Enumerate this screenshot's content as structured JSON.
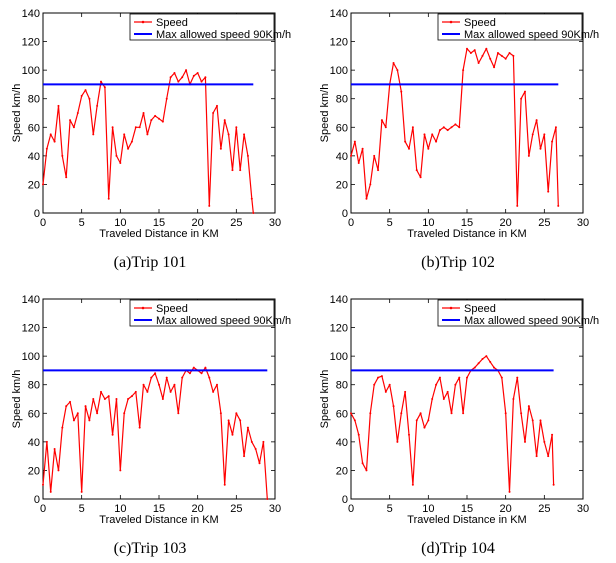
{
  "figure": {
    "charts": [
      {
        "caption": "(a)Trip 101",
        "variant": 0
      },
      {
        "caption": "(b)Trip 102",
        "variant": 1
      },
      {
        "caption": "(c)Trip 103",
        "variant": 2
      },
      {
        "caption": "(d)Trip 104",
        "variant": 3
      }
    ]
  },
  "chart_data": [
    {
      "type": "line",
      "title": "(a)Trip 101",
      "xlabel": "Traveled Distance in KM",
      "ylabel": "Speed km/h",
      "xlim": [
        0,
        30
      ],
      "ylim": [
        0,
        140
      ],
      "xticks": [
        0,
        5,
        10,
        15,
        20,
        25,
        30
      ],
      "yticks": [
        0,
        20,
        40,
        60,
        80,
        100,
        120,
        140
      ],
      "legend_position": "top-right",
      "grid": false,
      "series": [
        {
          "name": "Speed",
          "color": "#ff0000",
          "x": [
            0,
            0.5,
            1,
            1.5,
            2,
            2.5,
            3,
            3.5,
            4,
            4.5,
            5,
            5.5,
            6,
            6.5,
            7,
            7.5,
            8,
            8.5,
            9,
            9.5,
            10,
            10.5,
            11,
            11.5,
            12,
            12.5,
            13,
            13.5,
            14,
            14.5,
            15,
            15.5,
            16,
            16.5,
            17,
            17.5,
            18,
            18.5,
            19,
            19.5,
            20,
            20.5,
            21,
            21.5,
            22,
            22.5,
            23,
            23.5,
            24,
            24.5,
            25,
            25.5,
            26,
            26.5,
            27,
            27.2
          ],
          "y": [
            20,
            45,
            55,
            50,
            75,
            40,
            25,
            65,
            60,
            70,
            82,
            86,
            80,
            55,
            75,
            92,
            88,
            10,
            60,
            40,
            35,
            55,
            45,
            50,
            60,
            60,
            70,
            55,
            65,
            68,
            66,
            64,
            80,
            95,
            98,
            92,
            95,
            100,
            90,
            96,
            98,
            92,
            95,
            5,
            70,
            75,
            45,
            65,
            55,
            30,
            60,
            30,
            55,
            40,
            10,
            0
          ]
        },
        {
          "name": "Max allowed speed 90Km/h",
          "color": "#0000ff",
          "x": [
            0,
            27.2
          ],
          "y": [
            90,
            90
          ]
        }
      ]
    },
    {
      "type": "line",
      "title": "(b)Trip 102",
      "xlabel": "Traveled Distance in KM",
      "ylabel": "Speed km/h",
      "xlim": [
        0,
        30
      ],
      "ylim": [
        0,
        140
      ],
      "xticks": [
        0,
        5,
        10,
        15,
        20,
        25,
        30
      ],
      "yticks": [
        0,
        20,
        40,
        60,
        80,
        100,
        120,
        140
      ],
      "legend_position": "top-right",
      "grid": false,
      "series": [
        {
          "name": "Speed",
          "color": "#ff0000",
          "x": [
            0,
            0.5,
            1,
            1.5,
            2,
            2.5,
            3,
            3.5,
            4,
            4.5,
            5,
            5.5,
            6,
            6.5,
            7,
            7.5,
            8,
            8.5,
            9,
            9.5,
            10,
            10.5,
            11,
            11.5,
            12,
            12.5,
            13,
            13.5,
            14,
            14.5,
            15,
            15.5,
            16,
            16.5,
            17,
            17.5,
            18,
            18.5,
            19,
            19.5,
            20,
            20.5,
            21,
            21.5,
            22,
            22.5,
            23,
            23.5,
            24,
            24.5,
            25,
            25.5,
            26,
            26.5,
            26.8
          ],
          "y": [
            40,
            50,
            35,
            45,
            10,
            20,
            40,
            30,
            65,
            60,
            90,
            105,
            100,
            85,
            50,
            45,
            60,
            30,
            25,
            55,
            45,
            55,
            50,
            58,
            60,
            58,
            60,
            62,
            60,
            100,
            115,
            112,
            114,
            105,
            110,
            115,
            108,
            102,
            112,
            110,
            108,
            112,
            110,
            5,
            80,
            85,
            40,
            55,
            65,
            45,
            55,
            15,
            50,
            60,
            5
          ]
        },
        {
          "name": "Max allowed speed 90Km/h",
          "color": "#0000ff",
          "x": [
            0,
            26.8
          ],
          "y": [
            90,
            90
          ]
        }
      ]
    },
    {
      "type": "line",
      "title": "(c)Trip 103",
      "xlabel": "Traveled Distance in KM",
      "ylabel": "Speed km/h",
      "xlim": [
        0,
        30
      ],
      "ylim": [
        0,
        140
      ],
      "xticks": [
        0,
        5,
        10,
        15,
        20,
        25,
        30
      ],
      "yticks": [
        0,
        20,
        40,
        60,
        80,
        100,
        120,
        140
      ],
      "legend_position": "top-right",
      "grid": false,
      "series": [
        {
          "name": "Speed",
          "color": "#ff0000",
          "x": [
            0,
            0.5,
            1,
            1.5,
            2,
            2.5,
            3,
            3.5,
            4,
            4.5,
            5,
            5.5,
            6,
            6.5,
            7,
            7.5,
            8,
            8.5,
            9,
            9.5,
            10,
            10.5,
            11,
            11.5,
            12,
            12.5,
            13,
            13.5,
            14,
            14.5,
            15,
            15.5,
            16,
            16.5,
            17,
            17.5,
            18,
            18.5,
            19,
            19.5,
            20,
            20.5,
            21,
            21.5,
            22,
            22.5,
            23,
            23.5,
            24,
            24.5,
            25,
            25.5,
            26,
            26.5,
            27,
            27.5,
            28,
            28.5,
            29
          ],
          "y": [
            10,
            40,
            5,
            35,
            20,
            50,
            65,
            68,
            55,
            60,
            5,
            65,
            55,
            70,
            60,
            75,
            70,
            72,
            45,
            70,
            20,
            60,
            70,
            72,
            75,
            50,
            80,
            75,
            85,
            88,
            80,
            70,
            85,
            75,
            80,
            60,
            85,
            90,
            88,
            92,
            90,
            88,
            92,
            85,
            75,
            80,
            60,
            10,
            55,
            45,
            60,
            55,
            30,
            50,
            40,
            35,
            25,
            40,
            0
          ]
        },
        {
          "name": "Max allowed speed 90Km/h",
          "color": "#0000ff",
          "x": [
            0,
            29
          ],
          "y": [
            90,
            90
          ]
        }
      ]
    },
    {
      "type": "line",
      "title": "(d)Trip 104",
      "xlabel": "Traveled Distance in KM",
      "ylabel": "Speed km/h",
      "xlim": [
        0,
        30
      ],
      "ylim": [
        0,
        140
      ],
      "xticks": [
        0,
        5,
        10,
        15,
        20,
        25,
        30
      ],
      "yticks": [
        0,
        20,
        40,
        60,
        80,
        100,
        120,
        140
      ],
      "legend_position": "top-right",
      "grid": false,
      "series": [
        {
          "name": "Speed",
          "color": "#ff0000",
          "x": [
            0,
            0.5,
            1,
            1.5,
            2,
            2.5,
            3,
            3.5,
            4,
            4.5,
            5,
            5.5,
            6,
            6.5,
            7,
            7.5,
            8,
            8.5,
            9,
            9.5,
            10,
            10.5,
            11,
            11.5,
            12,
            12.5,
            13,
            13.5,
            14,
            14.5,
            15,
            15.5,
            16,
            16.5,
            17,
            17.5,
            18,
            18.5,
            19,
            19.5,
            20,
            20.5,
            21,
            21.5,
            22,
            22.5,
            23,
            23.5,
            24,
            24.5,
            25,
            25.5,
            26,
            26.2
          ],
          "y": [
            60,
            55,
            45,
            25,
            20,
            60,
            80,
            85,
            86,
            75,
            80,
            65,
            40,
            60,
            75,
            45,
            10,
            55,
            60,
            50,
            55,
            70,
            80,
            85,
            70,
            75,
            60,
            80,
            85,
            60,
            85,
            90,
            92,
            95,
            98,
            100,
            96,
            92,
            90,
            85,
            60,
            5,
            70,
            85,
            60,
            40,
            65,
            55,
            30,
            55,
            40,
            30,
            45,
            10
          ]
        },
        {
          "name": "Max allowed speed 90Km/h",
          "color": "#0000ff",
          "x": [
            0,
            26.2
          ],
          "y": [
            90,
            90
          ]
        }
      ]
    }
  ]
}
